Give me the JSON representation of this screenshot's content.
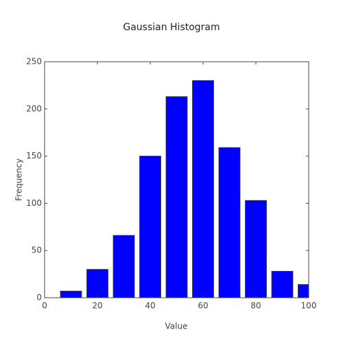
{
  "chart_data": {
    "type": "histogram",
    "title": "Gaussian Histogram",
    "xlabel": "Value",
    "ylabel": "Frequency",
    "bins": [
      5,
      15,
      25,
      35,
      45,
      55,
      65,
      75,
      85,
      95,
      105
    ],
    "values": [
      7,
      30,
      66,
      150,
      213,
      230,
      159,
      103,
      28,
      14
    ],
    "color": "#0000ff",
    "xlim": [
      0,
      100
    ],
    "xticks": [
      0,
      20,
      40,
      60,
      80,
      100
    ],
    "ylim": [
      0,
      250
    ],
    "yticks": [
      0,
      50,
      100,
      150,
      200,
      250
    ]
  }
}
